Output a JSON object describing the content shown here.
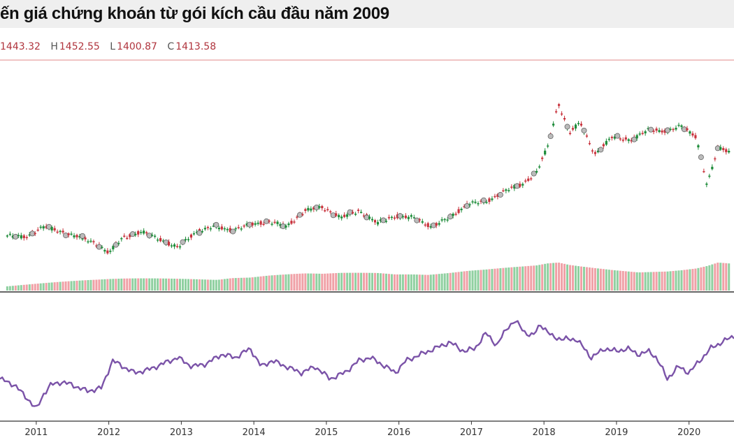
{
  "title": "ến giá chứng khoán từ gói kích cầu đầu năm 2009",
  "ohlc": {
    "o_value": "1443.32",
    "h_label": "H",
    "h_value": "1452.55",
    "l_label": "L",
    "l_value": "1400.87",
    "c_label": "C",
    "c_value": "1413.58"
  },
  "colors": {
    "up": "#1e8c3a",
    "down": "#c8323c",
    "vol_up": "#8fd0a0",
    "vol_down": "#f0a0a6",
    "line": "#7b53a8",
    "ref": "#e8a0a0",
    "marker": "#bbbbbb"
  },
  "chart_data": [
    {
      "type": "candlestick",
      "title": "",
      "x": [
        2010.6,
        2010.85,
        2011.1,
        2011.35,
        2011.6,
        2011.85,
        2012.0,
        2012.2,
        2012.45,
        2012.7,
        2012.95,
        2013.2,
        2013.45,
        2013.7,
        2013.95,
        2014.2,
        2014.45,
        2014.7,
        2014.95,
        2015.2,
        2015.45,
        2015.7,
        2015.95,
        2016.2,
        2016.45,
        2016.7,
        2016.95,
        2017.2,
        2017.45,
        2017.7,
        2017.9,
        2018.05,
        2018.2,
        2018.35,
        2018.5,
        2018.7,
        2018.95,
        2019.2,
        2019.45,
        2019.7,
        2019.9,
        2020.1,
        2020.25,
        2020.4,
        2020.55
      ],
      "close": [
        1280,
        1270,
        1330,
        1300,
        1270,
        1230,
        1180,
        1270,
        1300,
        1260,
        1210,
        1300,
        1330,
        1310,
        1340,
        1360,
        1330,
        1420,
        1440,
        1380,
        1420,
        1350,
        1390,
        1380,
        1330,
        1380,
        1460,
        1470,
        1530,
        1570,
        1640,
        1780,
        2030,
        1860,
        1920,
        1740,
        1840,
        1820,
        1880,
        1870,
        1900,
        1840,
        1560,
        1780,
        1760
      ],
      "volume": [
        8,
        9,
        10,
        11,
        12,
        13,
        14,
        15,
        16,
        17,
        18,
        19,
        20,
        22,
        21,
        23,
        24,
        25,
        24,
        26,
        27,
        28,
        27,
        29,
        30,
        31,
        33,
        34,
        36,
        38,
        40,
        44,
        46,
        42,
        40,
        38,
        36,
        35,
        34,
        33,
        34,
        36,
        40,
        46,
        44
      ],
      "xlim": [
        2010.5,
        2020.62
      ],
      "x_ticks": [
        "2011",
        "2012",
        "2013",
        "2014",
        "2015",
        "2016",
        "2017",
        "2018",
        "2019",
        "2020"
      ]
    },
    {
      "type": "line",
      "title": "",
      "x": [
        2010.5,
        2010.7,
        2010.9,
        2011.0,
        2011.1,
        2011.2,
        2011.35,
        2011.5,
        2011.7,
        2011.9,
        2012.05,
        2012.2,
        2012.35,
        2012.55,
        2012.75,
        2012.95,
        2013.15,
        2013.35,
        2013.55,
        2013.75,
        2013.95,
        2014.1,
        2014.25,
        2014.45,
        2014.65,
        2014.85,
        2015.05,
        2015.25,
        2015.45,
        2015.6,
        2015.75,
        2015.95,
        2016.1,
        2016.3,
        2016.5,
        2016.7,
        2016.9,
        2017.05,
        2017.2,
        2017.35,
        2017.5,
        2017.6,
        2017.75,
        2017.85,
        2017.95,
        2018.1,
        2018.25,
        2018.45,
        2018.65,
        2018.85,
        2019.0,
        2019.15,
        2019.3,
        2019.45,
        2019.55,
        2019.7,
        2019.85,
        2020.0,
        2020.15,
        2020.3,
        2020.45,
        2020.62
      ],
      "y": [
        310,
        300,
        275,
        260,
        285,
        300,
        305,
        300,
        290,
        295,
        340,
        330,
        320,
        325,
        335,
        345,
        330,
        335,
        350,
        345,
        360,
        330,
        340,
        330,
        320,
        330,
        310,
        320,
        340,
        345,
        335,
        320,
        340,
        350,
        360,
        370,
        355,
        360,
        385,
        365,
        395,
        405,
        385,
        380,
        400,
        380,
        375,
        375,
        345,
        360,
        355,
        360,
        350,
        355,
        345,
        310,
        330,
        320,
        340,
        360,
        370,
        380
      ],
      "xlim": [
        2010.5,
        2020.62
      ]
    }
  ]
}
